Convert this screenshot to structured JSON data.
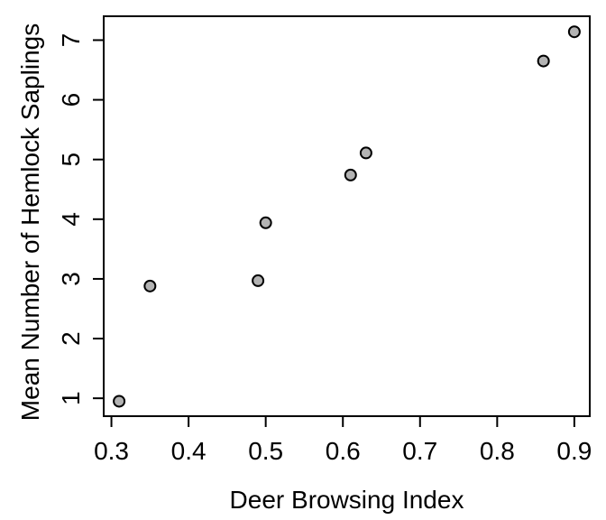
{
  "chart_data": {
    "type": "scatter",
    "xlabel": "Deer Browsing Index",
    "ylabel": "Mean Number of Hemlock Saplings",
    "xlim": [
      0.29,
      0.92
    ],
    "ylim": [
      0.7,
      7.4
    ],
    "x_ticks": [
      0.3,
      0.4,
      0.5,
      0.6,
      0.7,
      0.8,
      0.9
    ],
    "x_tick_labels": [
      "0.3",
      "0.4",
      "0.5",
      "0.6",
      "0.7",
      "0.8",
      "0.9"
    ],
    "y_ticks": [
      1,
      2,
      3,
      4,
      5,
      6,
      7
    ],
    "y_tick_labels": [
      "1",
      "2",
      "3",
      "4",
      "5",
      "6",
      "7"
    ],
    "grid": false,
    "marker_fill": "#b3b3b3",
    "marker_edge": "#000000",
    "points": [
      {
        "x": 0.31,
        "y": 0.95
      },
      {
        "x": 0.35,
        "y": 2.88
      },
      {
        "x": 0.49,
        "y": 2.97
      },
      {
        "x": 0.5,
        "y": 3.94
      },
      {
        "x": 0.61,
        "y": 4.74
      },
      {
        "x": 0.63,
        "y": 5.11
      },
      {
        "x": 0.86,
        "y": 6.65
      },
      {
        "x": 0.9,
        "y": 7.14
      }
    ]
  }
}
